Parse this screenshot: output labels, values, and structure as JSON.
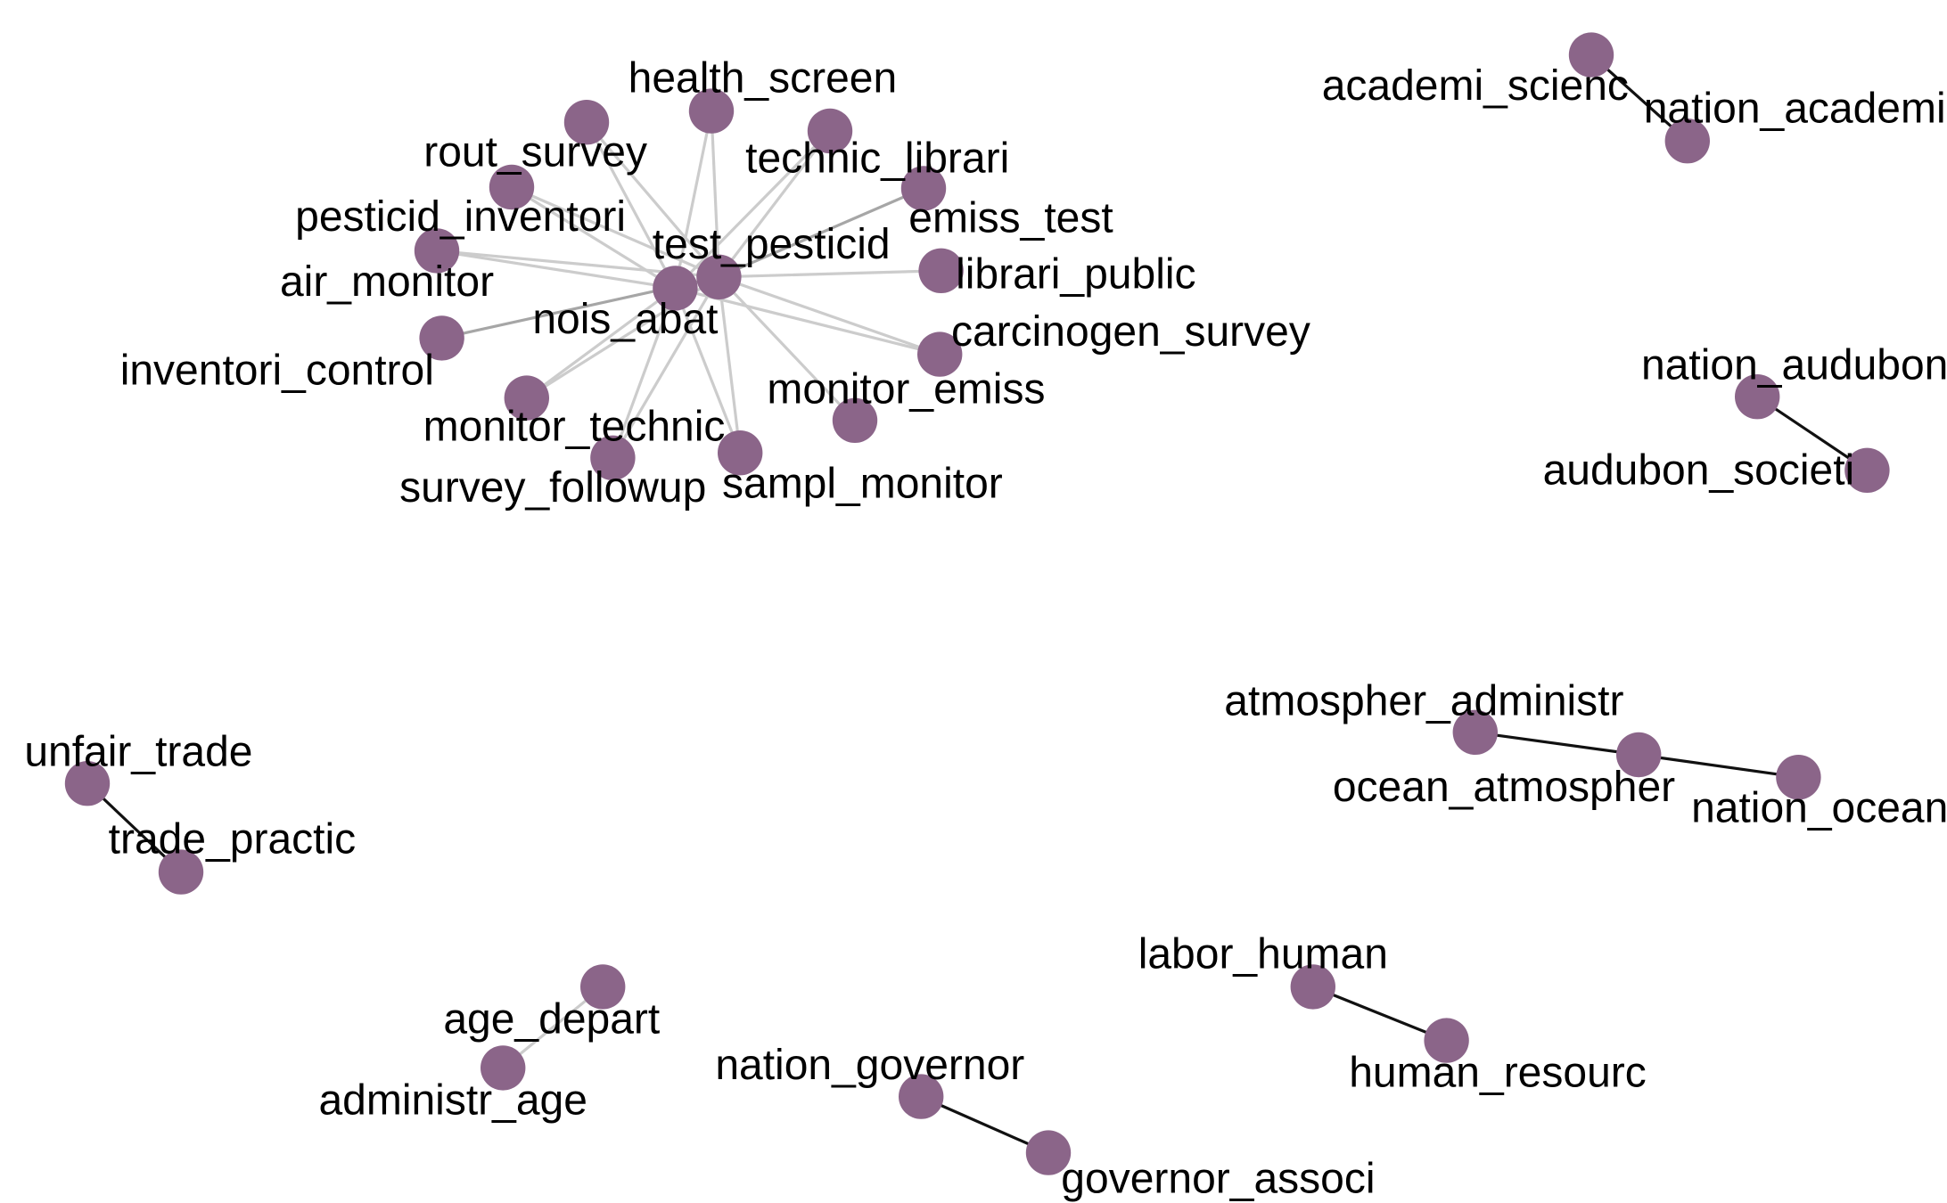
{
  "palette": {
    "node_fill": "#8b6589",
    "edge_strong": "#111111",
    "edge_light": "#cccccc",
    "edge_medium": "#a6a6a6",
    "label_text": "#000000",
    "background": "#ffffff"
  },
  "nodes": [
    {
      "id": "n1",
      "label": "test_pesticid"
    },
    {
      "id": "n2",
      "label": "nois_abat"
    },
    {
      "id": "n3",
      "label": "health_screen"
    },
    {
      "id": "n4",
      "label": "rout_survey"
    },
    {
      "id": "n5",
      "label": "technic_librari"
    },
    {
      "id": "n6",
      "label": "pesticid_inventori"
    },
    {
      "id": "n7",
      "label": "emiss_test"
    },
    {
      "id": "n8",
      "label": "air_monitor"
    },
    {
      "id": "n9",
      "label": "librari_public"
    },
    {
      "id": "n10",
      "label": "inventori_control"
    },
    {
      "id": "n11",
      "label": "carcinogen_survey"
    },
    {
      "id": "n12",
      "label": "monitor_emiss"
    },
    {
      "id": "n13",
      "label": "monitor_technic"
    },
    {
      "id": "n14",
      "label": "survey_followup"
    },
    {
      "id": "n15",
      "label": "sampl_monitor"
    },
    {
      "id": "n16",
      "label": "academi_scienc"
    },
    {
      "id": "n17",
      "label": "nation_academi"
    },
    {
      "id": "n18",
      "label": "nation_audubon"
    },
    {
      "id": "n19",
      "label": "audubon_societi"
    },
    {
      "id": "n20",
      "label": "atmospher_administr"
    },
    {
      "id": "n21",
      "label": "ocean_atmospher"
    },
    {
      "id": "n22",
      "label": "nation_ocean"
    },
    {
      "id": "n23",
      "label": "unfair_trade"
    },
    {
      "id": "n24",
      "label": "trade_practic"
    },
    {
      "id": "n25",
      "label": "labor_human"
    },
    {
      "id": "n26",
      "label": "human_resourc"
    },
    {
      "id": "n27",
      "label": "age_depart"
    },
    {
      "id": "n28",
      "label": "administr_age"
    },
    {
      "id": "n29",
      "label": "nation_governor"
    },
    {
      "id": "n30",
      "label": "governor_associ"
    }
  ],
  "edges": [
    {
      "source": "n1",
      "target": "n2",
      "tone": "light"
    },
    {
      "source": "n1",
      "target": "n3",
      "tone": "light"
    },
    {
      "source": "n1",
      "target": "n4",
      "tone": "light"
    },
    {
      "source": "n1",
      "target": "n5",
      "tone": "light"
    },
    {
      "source": "n1",
      "target": "n6",
      "tone": "light"
    },
    {
      "source": "n1",
      "target": "n7",
      "tone": "medium"
    },
    {
      "source": "n1",
      "target": "n8",
      "tone": "light"
    },
    {
      "source": "n1",
      "target": "n9",
      "tone": "light"
    },
    {
      "source": "n1",
      "target": "n10",
      "tone": "medium"
    },
    {
      "source": "n1",
      "target": "n11",
      "tone": "light"
    },
    {
      "source": "n1",
      "target": "n12",
      "tone": "light"
    },
    {
      "source": "n1",
      "target": "n13",
      "tone": "light"
    },
    {
      "source": "n1",
      "target": "n14",
      "tone": "light"
    },
    {
      "source": "n1",
      "target": "n15",
      "tone": "light"
    },
    {
      "source": "n2",
      "target": "n3",
      "tone": "light"
    },
    {
      "source": "n2",
      "target": "n4",
      "tone": "light"
    },
    {
      "source": "n2",
      "target": "n5",
      "tone": "light"
    },
    {
      "source": "n2",
      "target": "n6",
      "tone": "light"
    },
    {
      "source": "n2",
      "target": "n8",
      "tone": "light"
    },
    {
      "source": "n2",
      "target": "n11",
      "tone": "light"
    },
    {
      "source": "n2",
      "target": "n13",
      "tone": "light"
    },
    {
      "source": "n2",
      "target": "n14",
      "tone": "light"
    },
    {
      "source": "n2",
      "target": "n15",
      "tone": "light"
    },
    {
      "source": "n16",
      "target": "n17",
      "tone": "strong"
    },
    {
      "source": "n18",
      "target": "n19",
      "tone": "strong"
    },
    {
      "source": "n20",
      "target": "n21",
      "tone": "strong"
    },
    {
      "source": "n21",
      "target": "n22",
      "tone": "strong"
    },
    {
      "source": "n23",
      "target": "n24",
      "tone": "strong"
    },
    {
      "source": "n25",
      "target": "n26",
      "tone": "strong"
    },
    {
      "source": "n27",
      "target": "n28",
      "tone": "light"
    },
    {
      "source": "n29",
      "target": "n30",
      "tone": "strong"
    }
  ]
}
